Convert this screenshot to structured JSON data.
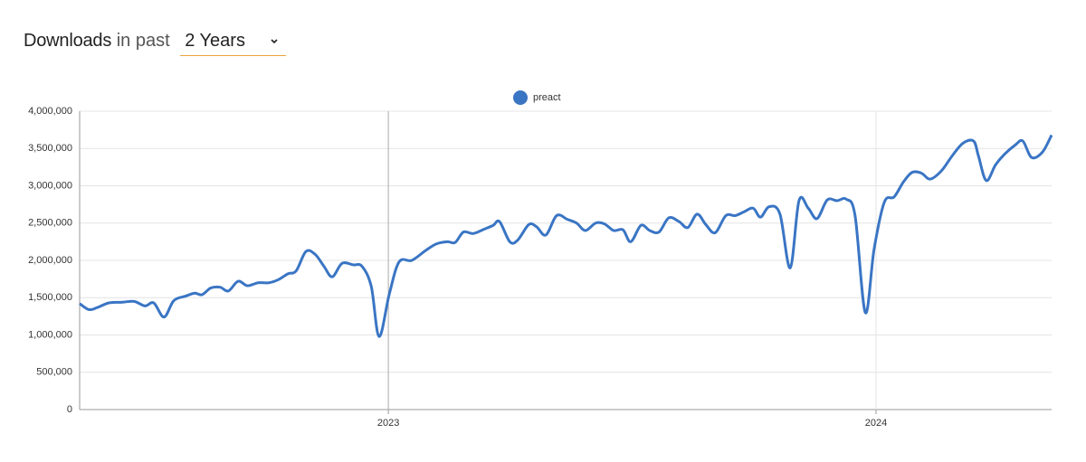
{
  "header": {
    "title": "Downloads",
    "subtitle": "in past",
    "period": "2 Years"
  },
  "chart_data": {
    "type": "line",
    "series": [
      {
        "name": "preact",
        "color": "#3a75c4",
        "x": [
          2022.367,
          2022.386,
          2022.404,
          2022.427,
          2022.455,
          2022.479,
          2022.501,
          2022.519,
          2022.54,
          2022.56,
          2022.584,
          2022.603,
          2022.618,
          2022.636,
          2022.655,
          2022.672,
          2022.692,
          2022.711,
          2022.733,
          2022.755,
          2022.774,
          2022.794,
          2022.811,
          2022.831,
          2022.85,
          2022.868,
          2022.885,
          2022.905,
          2022.928,
          2022.946,
          2022.965,
          2022.981,
          2023.002,
          2023.022,
          2023.048,
          2023.076,
          2023.098,
          2023.121,
          2023.137,
          2023.154,
          2023.174,
          2023.197,
          2023.215,
          2023.228,
          2023.249,
          2023.265,
          2023.288,
          2023.304,
          2023.323,
          2023.345,
          2023.367,
          2023.386,
          2023.404,
          2023.425,
          2023.443,
          2023.462,
          2023.481,
          2023.497,
          2023.518,
          2023.536,
          2023.555,
          2023.575,
          2023.596,
          2023.614,
          2023.633,
          2023.651,
          2023.67,
          2023.692,
          2023.711,
          2023.729,
          2023.748,
          2023.763,
          2023.781,
          2023.803,
          2023.824,
          2023.842,
          2023.861,
          2023.879,
          2023.9,
          2023.92,
          2023.939,
          2023.957,
          2023.978,
          2023.996,
          2024.017,
          2024.037,
          2024.056,
          2024.074,
          2024.093,
          2024.111,
          2024.134,
          2024.156,
          2024.178,
          2024.2,
          2024.21,
          2024.226,
          2024.245,
          2024.263,
          2024.286,
          2024.301,
          2024.319,
          2024.341,
          2024.36
        ],
        "values": [
          1420000,
          1340000,
          1370000,
          1430000,
          1440000,
          1450000,
          1390000,
          1430000,
          1240000,
          1460000,
          1520000,
          1560000,
          1540000,
          1630000,
          1640000,
          1590000,
          1720000,
          1660000,
          1700000,
          1700000,
          1740000,
          1820000,
          1860000,
          2120000,
          2080000,
          1920000,
          1780000,
          1960000,
          1940000,
          1920000,
          1650000,
          980000,
          1550000,
          1980000,
          2000000,
          2130000,
          2220000,
          2250000,
          2240000,
          2380000,
          2360000,
          2420000,
          2470000,
          2520000,
          2250000,
          2270000,
          2480000,
          2450000,
          2340000,
          2600000,
          2550000,
          2500000,
          2400000,
          2500000,
          2490000,
          2400000,
          2410000,
          2250000,
          2470000,
          2400000,
          2380000,
          2570000,
          2520000,
          2440000,
          2620000,
          2480000,
          2370000,
          2600000,
          2600000,
          2650000,
          2700000,
          2580000,
          2720000,
          2620000,
          1900000,
          2800000,
          2700000,
          2560000,
          2810000,
          2800000,
          2820000,
          2600000,
          1300000,
          2150000,
          2780000,
          2850000,
          3050000,
          3180000,
          3170000,
          3090000,
          3200000,
          3400000,
          3570000,
          3600000,
          3400000,
          3070000,
          3280000,
          3420000,
          3550000,
          3600000,
          3380000,
          3450000,
          3680000
        ]
      }
    ],
    "xlim": [
      2022.367,
      2024.36
    ],
    "xticks": [
      2023,
      2024
    ],
    "ylim": [
      0,
      4000000
    ],
    "yticks": [
      0,
      {
        "value": 500000,
        "label": "500,000"
      },
      {
        "value": 1000000,
        "label": "1,000,000"
      },
      {
        "value": 1500000,
        "label": "1,500,000"
      },
      {
        "value": 2000000,
        "label": "2,000,000"
      },
      {
        "value": 2500000,
        "label": "2,500,000"
      },
      {
        "value": 3000000,
        "label": "3,000,000"
      },
      {
        "value": 3500000,
        "label": "3,500,000"
      },
      {
        "value": 4000000,
        "label": "4,000,000"
      }
    ],
    "grid": true
  }
}
